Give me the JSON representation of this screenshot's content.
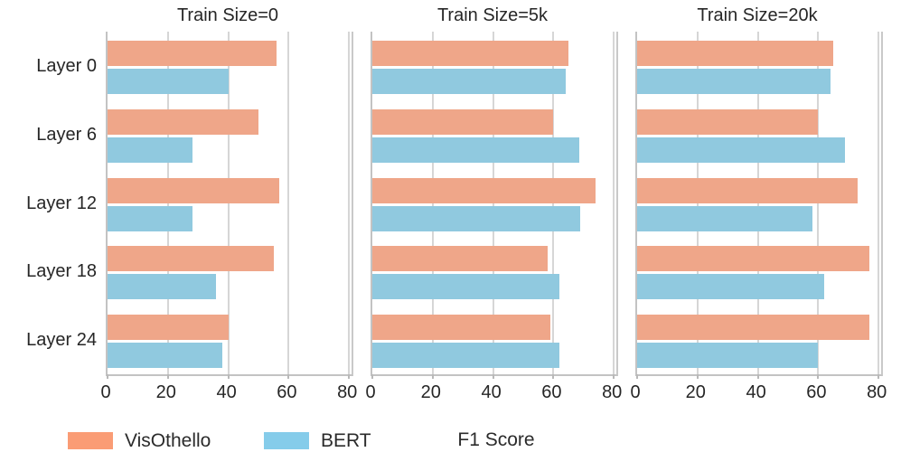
{
  "figure": {
    "background": "#ffffff",
    "text_color": "#262626",
    "grid_color": "#d6d6d6",
    "spine_color": "#c3c3c3"
  },
  "chart_data": {
    "type": "bar",
    "orientation": "horizontal",
    "title": "",
    "xlabel": "F1 Score",
    "ylabel": "",
    "grid": true,
    "legend_position": "bottom-left",
    "xlim": [
      0,
      80.8
    ],
    "x_ticks": [
      0,
      20,
      40,
      60,
      80
    ],
    "categories": [
      "Layer 0",
      "Layer 6",
      "Layer 12",
      "Layer 18",
      "Layer 24"
    ],
    "panels": [
      {
        "title": "Train Size=0",
        "series": [
          {
            "name": "VisOthello",
            "values": [
              56,
              50,
              57,
              55,
              40
            ]
          },
          {
            "name": "BERT",
            "values": [
              40,
              28,
              28,
              36,
              38
            ]
          }
        ]
      },
      {
        "title": "Train Size=5k",
        "series": [
          {
            "name": "VisOthello",
            "values": [
              65,
              60,
              74,
              58,
              59
            ]
          },
          {
            "name": "BERT",
            "values": [
              64,
              68.5,
              69,
              62,
              62
            ]
          }
        ]
      },
      {
        "title": "Train Size=20k",
        "series": [
          {
            "name": "VisOthello",
            "values": [
              65,
              60,
              73,
              77,
              77
            ]
          },
          {
            "name": "BERT",
            "values": [
              64,
              69,
              58,
              62,
              60
            ]
          }
        ]
      }
    ],
    "legend": [
      {
        "label": "VisOthello",
        "color": "#fa9c75",
        "bar_color": "#efa689"
      },
      {
        "label": "BERT",
        "color": "#85ccea",
        "bar_color": "#90c9df"
      }
    ]
  }
}
